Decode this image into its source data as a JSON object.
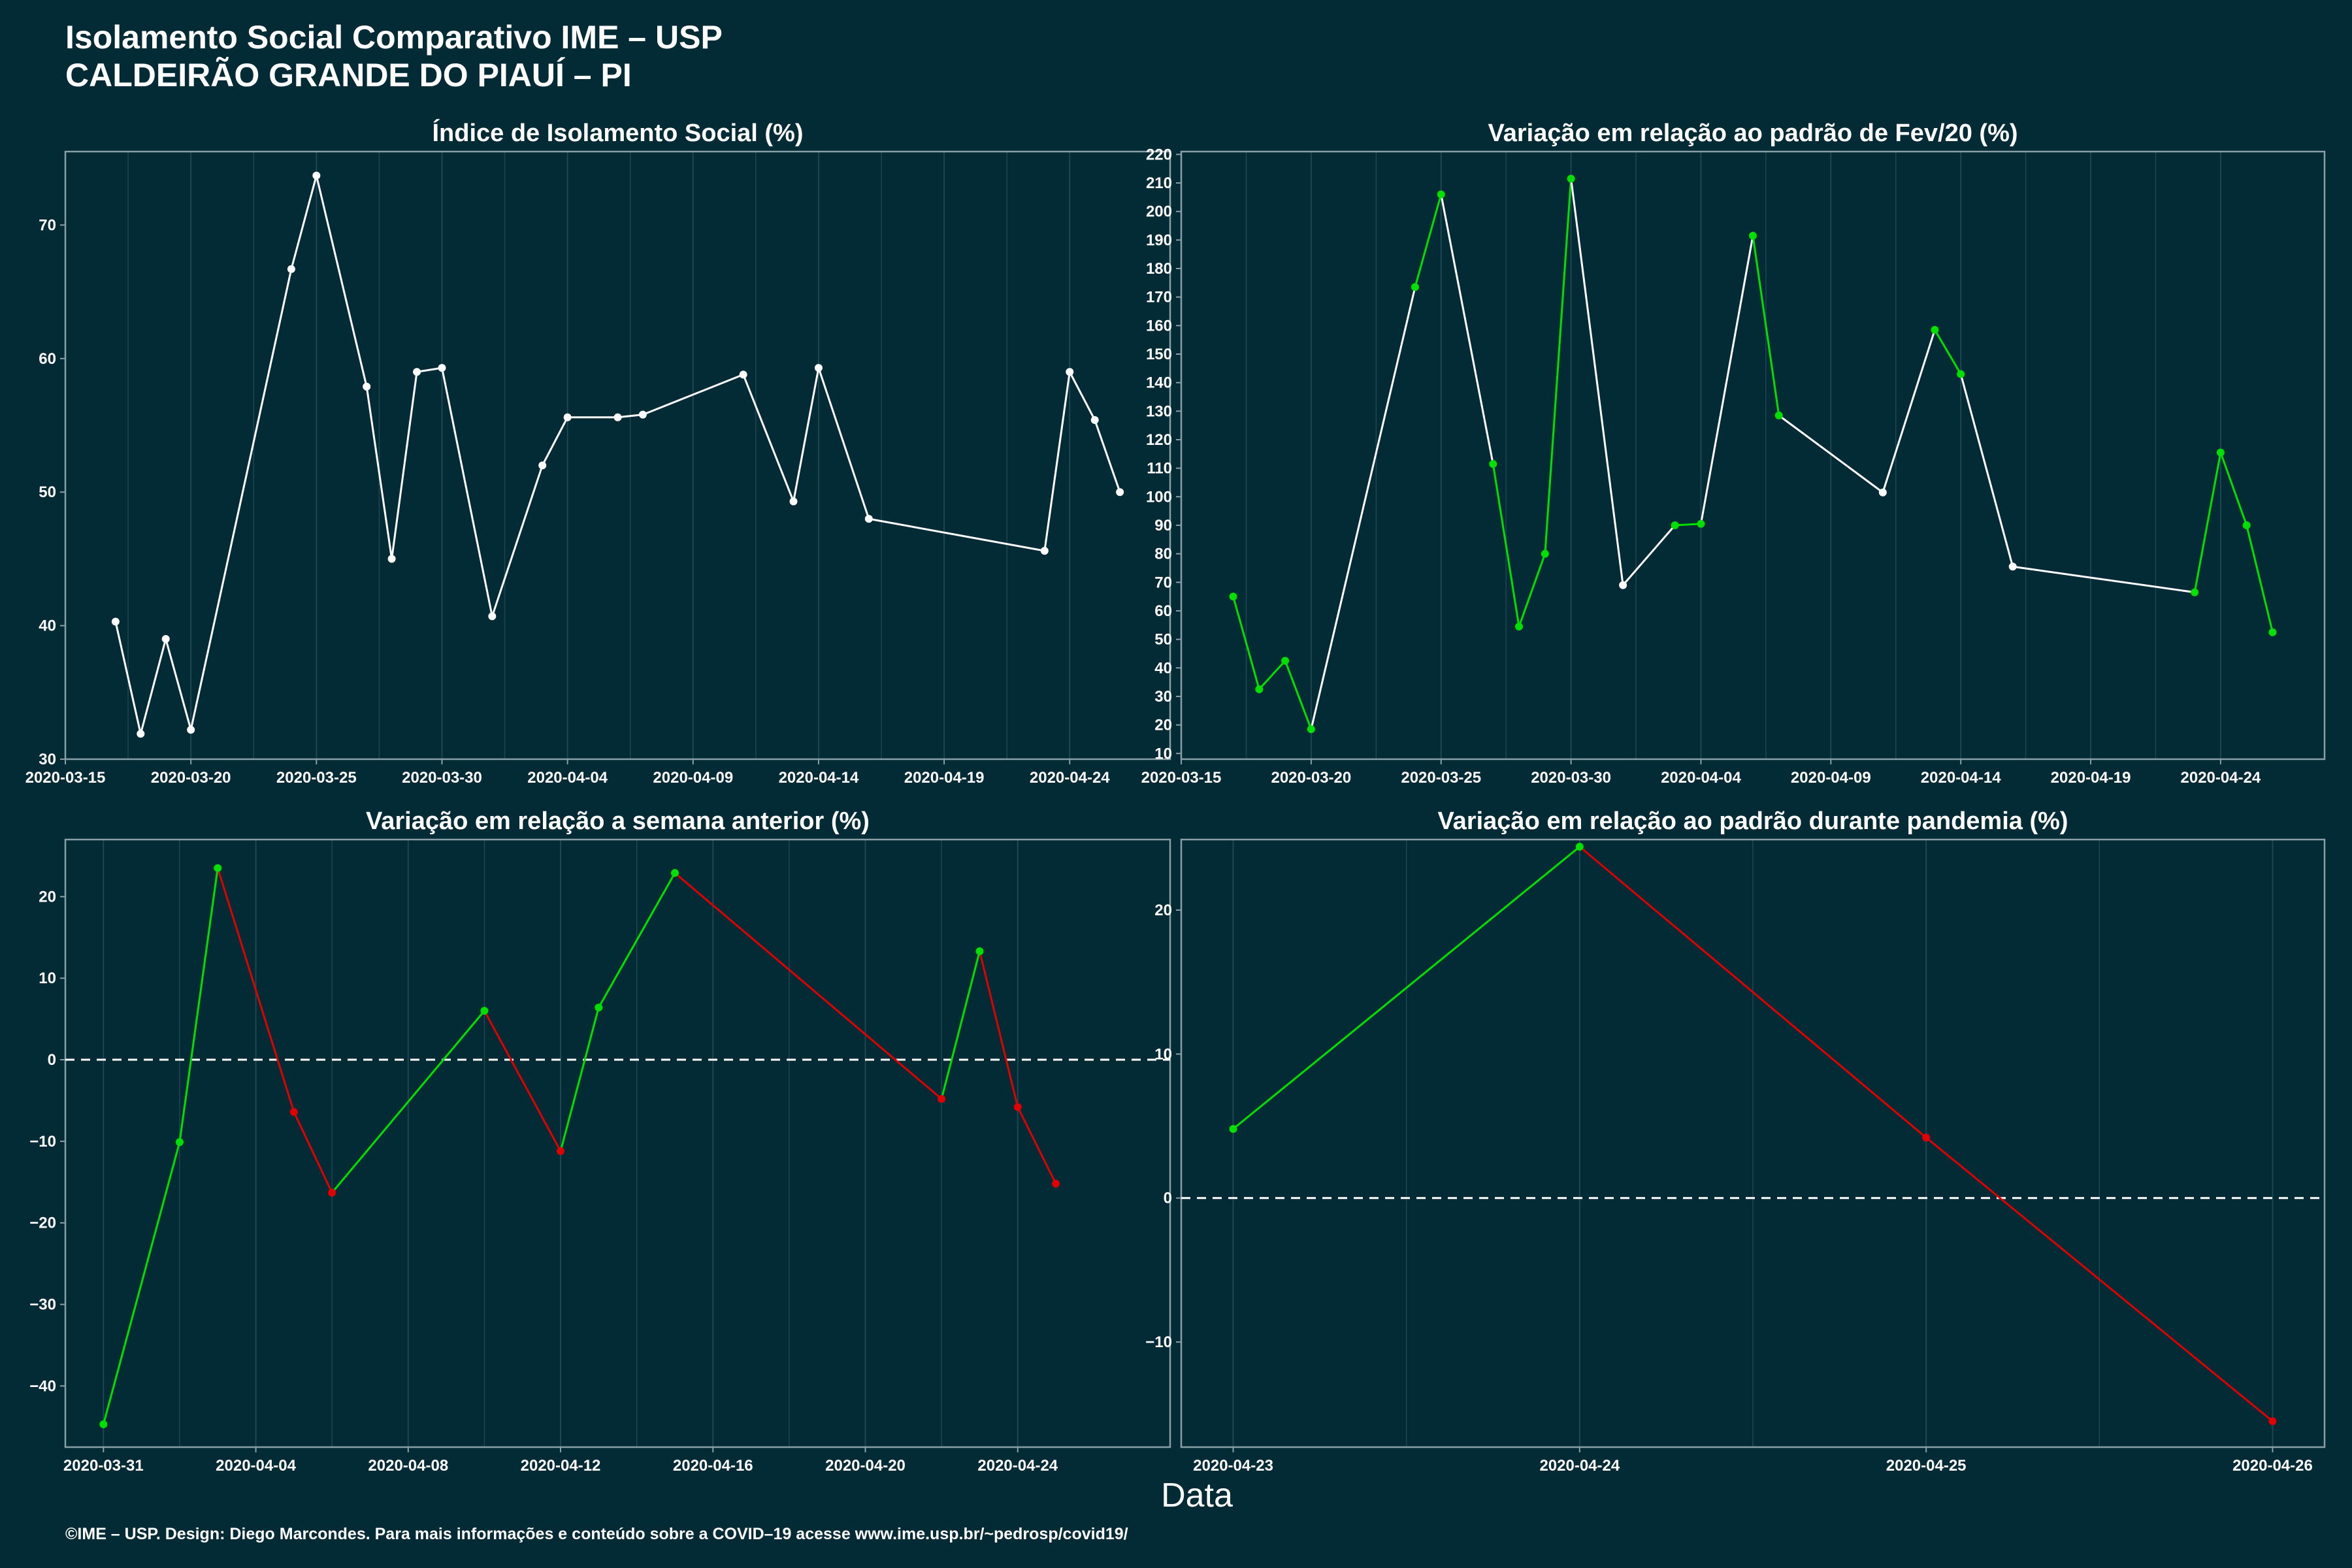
{
  "header": {
    "title_line1": "Isolamento Social Comparativo IME – USP",
    "title_line2": "CALDEIRÃO GRANDE DO PIAUÍ – PI"
  },
  "xlabel": "Data",
  "footer": "©IME – USP. Design: Diego Marcondes. Para mais informações e conteúdo sobre a COVID–19 acesse www.ime.usp.br/~pedrosp/covid19/",
  "colors": {
    "background": "#022b36",
    "panel_border": "#8aa0a6",
    "grid": "#1f4652",
    "neutral": "#ffffff",
    "increase": "#00e000",
    "decrease": "#e00000"
  },
  "chart_data": [
    {
      "id": "isolamento",
      "type": "line",
      "title": "Índice de Isolamento Social (%)",
      "x_type": "date",
      "xlim": [
        "2020-03-15",
        "2020-04-28"
      ],
      "ylim": [
        30,
        75.5
      ],
      "xticks": [
        "2020-03-15",
        "2020-03-20",
        "2020-03-25",
        "2020-03-30",
        "2020-04-04",
        "2020-04-09",
        "2020-04-14",
        "2020-04-19",
        "2020-04-24"
      ],
      "yticks": [
        30,
        40,
        50,
        60,
        70
      ],
      "color_mode": "white",
      "points": [
        [
          "2020-03-17",
          40.3
        ],
        [
          "2020-03-18",
          31.9
        ],
        [
          "2020-03-19",
          39.0
        ],
        [
          "2020-03-20",
          32.2
        ],
        [
          "2020-03-24",
          66.7
        ],
        [
          "2020-03-25",
          73.7
        ],
        [
          "2020-03-27",
          57.9
        ],
        [
          "2020-03-28",
          45.0
        ],
        [
          "2020-03-29",
          59.0
        ],
        [
          "2020-03-30",
          59.3
        ],
        [
          "2020-04-01",
          40.7
        ],
        [
          "2020-04-03",
          52.0
        ],
        [
          "2020-04-04",
          55.6
        ],
        [
          "2020-04-06",
          55.6
        ],
        [
          "2020-04-07",
          55.8
        ],
        [
          "2020-04-11",
          58.8
        ],
        [
          "2020-04-13",
          49.3
        ],
        [
          "2020-04-14",
          59.3
        ],
        [
          "2020-04-16",
          48.0
        ],
        [
          "2020-04-23",
          45.6
        ],
        [
          "2020-04-24",
          59.0
        ],
        [
          "2020-04-25",
          55.4
        ],
        [
          "2020-04-26",
          50.0
        ]
      ]
    },
    {
      "id": "variacao-fev",
      "type": "line",
      "title": "Variação em relação ao padrão de Fev/20 (%)",
      "x_type": "date",
      "xlim": [
        "2020-03-15",
        "2020-04-28"
      ],
      "ylim": [
        8,
        221
      ],
      "xticks": [
        "2020-03-15",
        "2020-03-20",
        "2020-03-25",
        "2020-03-30",
        "2020-04-04",
        "2020-04-09",
        "2020-04-14",
        "2020-04-19",
        "2020-04-24"
      ],
      "yticks": [
        10,
        20,
        30,
        40,
        50,
        60,
        70,
        80,
        90,
        100,
        110,
        120,
        130,
        140,
        150,
        160,
        170,
        180,
        190,
        200,
        210,
        220
      ],
      "color_mode": "gap",
      "points": [
        [
          "2020-03-17",
          65
        ],
        [
          "2020-03-18",
          32.5
        ],
        [
          "2020-03-19",
          42.5
        ],
        [
          "2020-03-20",
          18.5
        ],
        [
          "2020-03-24",
          173.5
        ],
        [
          "2020-03-25",
          206
        ],
        [
          "2020-03-27",
          111.5
        ],
        [
          "2020-03-28",
          54.5
        ],
        [
          "2020-03-29",
          80
        ],
        [
          "2020-03-30",
          211.5
        ],
        [
          "2020-04-01",
          69
        ],
        [
          "2020-04-03",
          90
        ],
        [
          "2020-04-04",
          90.5
        ],
        [
          "2020-04-06",
          191.5
        ],
        [
          "2020-04-07",
          128.5
        ],
        [
          "2020-04-11",
          101.5
        ],
        [
          "2020-04-13",
          158.5
        ],
        [
          "2020-04-14",
          143
        ],
        [
          "2020-04-16",
          75.5
        ],
        [
          "2020-04-23",
          66.5
        ],
        [
          "2020-04-24",
          115.5
        ],
        [
          "2020-04-25",
          90
        ],
        [
          "2020-04-26",
          52.5
        ]
      ]
    },
    {
      "id": "variacao-semana",
      "type": "line",
      "title": "Variação em relação a semana anterior (%)",
      "x_type": "date",
      "xlim": [
        "2020-03-30",
        "2020-04-28"
      ],
      "ylim": [
        -47.5,
        27
      ],
      "xticks": [
        "2020-03-31",
        "2020-04-04",
        "2020-04-08",
        "2020-04-12",
        "2020-04-16",
        "2020-04-20",
        "2020-04-24"
      ],
      "yticks": [
        -40,
        -30,
        -20,
        -10,
        0,
        10,
        20
      ],
      "color_mode": "sign",
      "zero_line": true,
      "points": [
        [
          "2020-03-31",
          -44.7
        ],
        [
          "2020-04-02",
          -10.1
        ],
        [
          "2020-04-03",
          23.5
        ],
        [
          "2020-04-05",
          -6.4
        ],
        [
          "2020-04-06",
          -16.3
        ],
        [
          "2020-04-10",
          6.0
        ],
        [
          "2020-04-12",
          -11.2
        ],
        [
          "2020-04-13",
          6.4
        ],
        [
          "2020-04-15",
          22.9
        ],
        [
          "2020-04-22",
          -4.8
        ],
        [
          "2020-04-23",
          13.3
        ],
        [
          "2020-04-24",
          -5.8
        ],
        [
          "2020-04-25",
          -15.2
        ]
      ]
    },
    {
      "id": "variacao-pandemia",
      "type": "line",
      "title": "Variação em relação ao padrão durante pandemia (%)",
      "x_type": "date",
      "xlim": [
        "2020-04-22.85",
        "2020-04-26.15"
      ],
      "ylim": [
        -17.3,
        24.9
      ],
      "xticks": [
        "2020-04-23",
        "2020-04-24",
        "2020-04-25",
        "2020-04-26"
      ],
      "yticks": [
        -10,
        0,
        10,
        20
      ],
      "color_mode": "sign",
      "zero_line": true,
      "points": [
        [
          "2020-04-23",
          4.8
        ],
        [
          "2020-04-24",
          24.4
        ],
        [
          "2020-04-25",
          4.2
        ],
        [
          "2020-04-26",
          -15.5
        ]
      ]
    }
  ]
}
